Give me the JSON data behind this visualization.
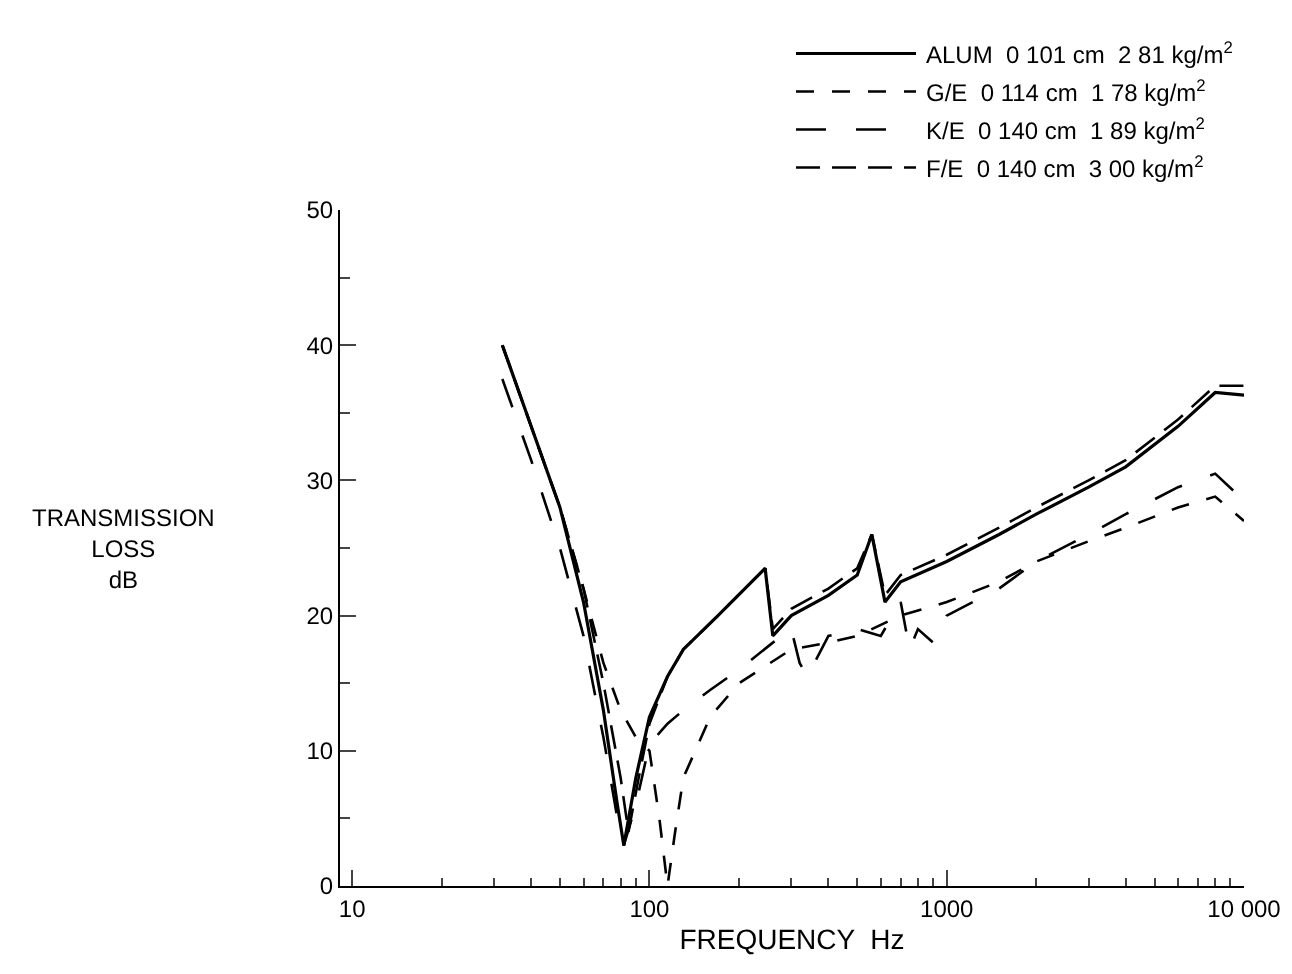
{
  "chart_data": {
    "type": "line",
    "xlabel": "FREQUENCY  Hz",
    "ylabel": "TRANSMISSION\nLOSS\ndB",
    "log": "x",
    "xlim": [
      9.1,
      10000
    ],
    "xticks": [
      10,
      100,
      1000,
      {
        "value": 10000,
        "label": "10 000"
      }
    ],
    "ylim": [
      0,
      50
    ],
    "yticks": [
      0,
      10,
      20,
      30,
      40,
      50
    ],
    "grid": false,
    "legend": "top right",
    "marker": "none",
    "series": [
      {
        "name": "ALUM  0 101 cm  2 81 kg/m$^{2}$",
        "color": "#000000",
        "line_style": "solid",
        "x": [
          32,
          40,
          50,
          60,
          70,
          78,
          82,
          90,
          100,
          115,
          130,
          170,
          245,
          260,
          300,
          400,
          500,
          560,
          620,
          700,
          1000,
          1500,
          2000,
          3000,
          4000,
          6000,
          8000,
          10000
        ],
        "values": [
          40,
          34,
          28,
          21,
          13,
          6,
          3,
          8,
          12.5,
          15.5,
          17.5,
          20,
          23.5,
          18.5,
          20,
          21.5,
          23,
          26,
          21,
          22.5,
          24,
          26,
          27.5,
          29.5,
          31,
          34,
          36.5,
          36.3
        ]
      },
      {
        "name": "G/E  0 114 cm  1 78 kg/m$^{2}$",
        "color": "#000000",
        "line_style": "dashed",
        "x": [
          32,
          40,
          50,
          60,
          70,
          80,
          90,
          100,
          108,
          115,
          122,
          130,
          160,
          200,
          300,
          400,
          500,
          700,
          1000,
          1500,
          2000,
          3000,
          4000,
          6000,
          8000,
          10000
        ],
        "values": [
          40,
          34,
          28,
          22,
          16.5,
          13,
          11,
          10,
          5,
          0,
          4,
          8,
          12.5,
          15,
          17.5,
          18,
          18.5,
          20,
          21,
          22.5,
          24,
          25.5,
          26.5,
          28,
          28.8,
          27
        ]
      },
      {
        "name": "K/E  0 140 cm  1 89 kg/m$^{2}$",
        "color": "#000000",
        "line_style": "dashed",
        "x": [
          32,
          40,
          50,
          60,
          70,
          78,
          82,
          90,
          100,
          115,
          130,
          160,
          200,
          260,
          300,
          320,
          340,
          400,
          500,
          600,
          700,
          750,
          800,
          900,
          1000,
          1500,
          2000,
          3000,
          4000,
          6000,
          8000,
          10000
        ],
        "values": [
          37.5,
          31.5,
          25,
          18.5,
          11,
          5,
          3,
          6,
          10.5,
          12,
          13,
          14.5,
          16,
          18,
          19,
          16.5,
          15.5,
          18.5,
          19,
          18.5,
          21,
          17.5,
          19,
          18,
          20,
          22,
          24,
          26,
          27.5,
          29.5,
          30.5,
          28.5
        ]
      },
      {
        "name": "F/E  0 140 cm  3 00 kg/m$^{2}$",
        "color": "#000000",
        "line_style": "dashed",
        "x": [
          32,
          40,
          50,
          60,
          70,
          80,
          85,
          92,
          100,
          115,
          130,
          170,
          245,
          260,
          300,
          400,
          500,
          560,
          620,
          700,
          1000,
          1500,
          2000,
          3000,
          4000,
          6000,
          8000,
          10000
        ],
        "values": [
          40,
          34,
          28,
          22,
          15,
          8,
          4,
          8,
          12,
          15.5,
          17.5,
          20,
          23.5,
          19,
          20.5,
          22,
          23.5,
          26,
          21.5,
          23,
          24.5,
          26.5,
          28,
          30,
          31.5,
          34.5,
          37,
          37
        ]
      }
    ]
  }
}
